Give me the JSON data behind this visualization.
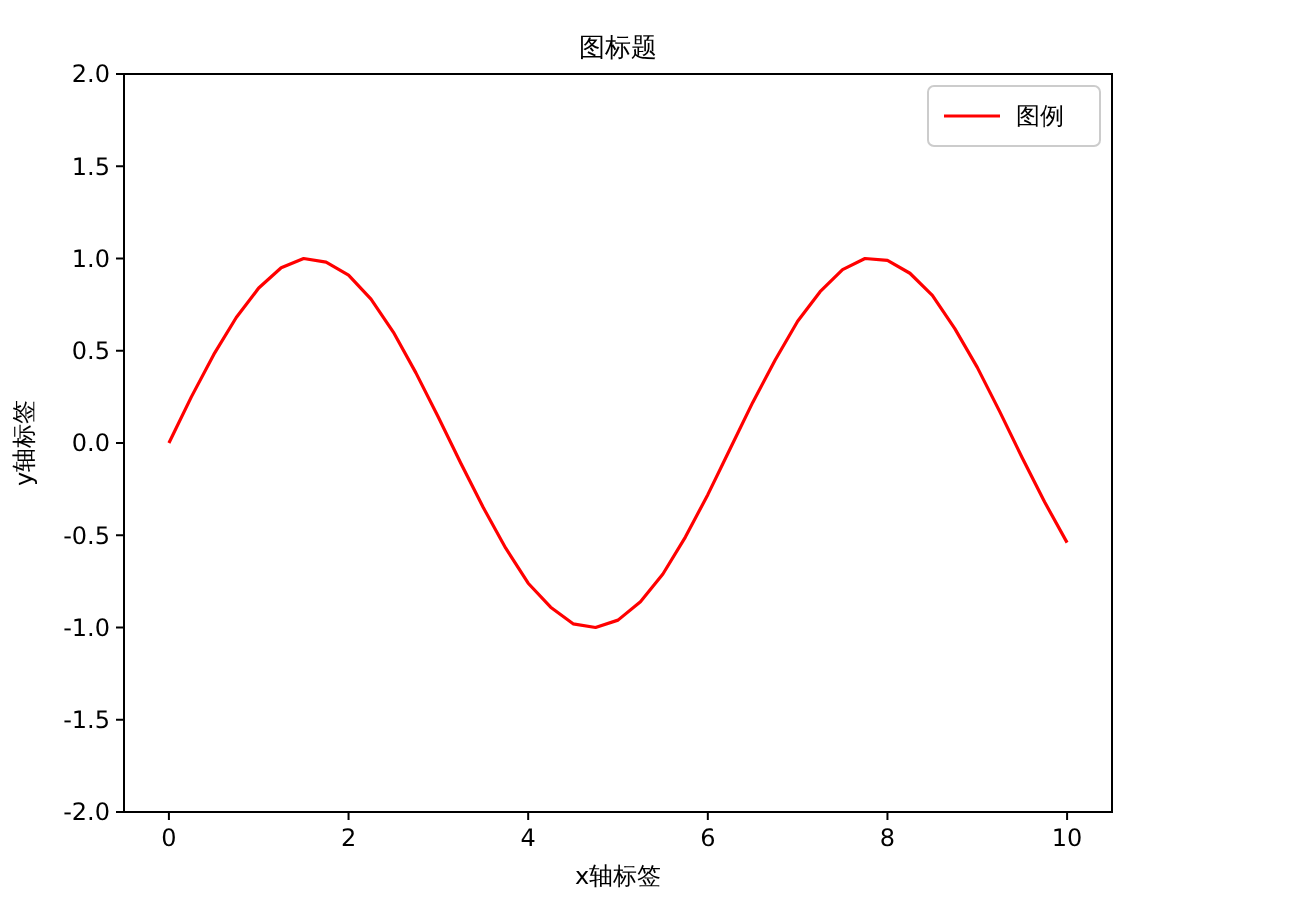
{
  "chart_data": {
    "type": "line",
    "title": "图标题",
    "xlabel": "x轴标签",
    "ylabel": "y轴标签",
    "x": [
      0,
      0.25,
      0.5,
      0.75,
      1,
      1.25,
      1.5,
      1.75,
      2,
      2.25,
      2.5,
      2.75,
      3,
      3.25,
      3.5,
      3.75,
      4,
      4.25,
      4.5,
      4.75,
      5,
      5.25,
      5.5,
      5.75,
      6,
      6.25,
      6.5,
      6.75,
      7,
      7.25,
      7.5,
      7.75,
      8,
      8.25,
      8.5,
      8.75,
      9,
      9.25,
      9.5,
      9.75,
      10
    ],
    "series": [
      {
        "name": "图例",
        "color": "#ff0000",
        "values": [
          0,
          0.25,
          0.48,
          0.68,
          0.84,
          0.95,
          1.0,
          0.98,
          0.91,
          0.78,
          0.6,
          0.38,
          0.14,
          -0.11,
          -0.35,
          -0.57,
          -0.76,
          -0.89,
          -0.98,
          -1.0,
          -0.96,
          -0.86,
          -0.71,
          -0.51,
          -0.28,
          -0.03,
          0.22,
          0.45,
          0.66,
          0.82,
          0.94,
          1.0,
          0.99,
          0.92,
          0.8,
          0.62,
          0.41,
          0.17,
          -0.08,
          -0.32,
          -0.54
        ]
      }
    ],
    "xlim": [
      -0.5,
      10.5
    ],
    "xticks": [
      0,
      2,
      4,
      6,
      8,
      10
    ],
    "ylim": [
      -2,
      2
    ],
    "yticks": [
      {
        "value": -2,
        "label": "-2.0"
      },
      {
        "value": -1.5,
        "label": "-1.5"
      },
      {
        "value": -1,
        "label": "-1.0"
      },
      {
        "value": -0.5,
        "label": "-0.5"
      },
      {
        "value": 0,
        "label": "0.0"
      },
      {
        "value": 0.5,
        "label": "0.5"
      },
      {
        "value": 1,
        "label": "1.0"
      },
      {
        "value": 1.5,
        "label": "1.5"
      },
      {
        "value": 2,
        "label": "2.0"
      }
    ],
    "legend": "top right",
    "grid": false,
    "marker": "none",
    "line_style": "solid"
  }
}
